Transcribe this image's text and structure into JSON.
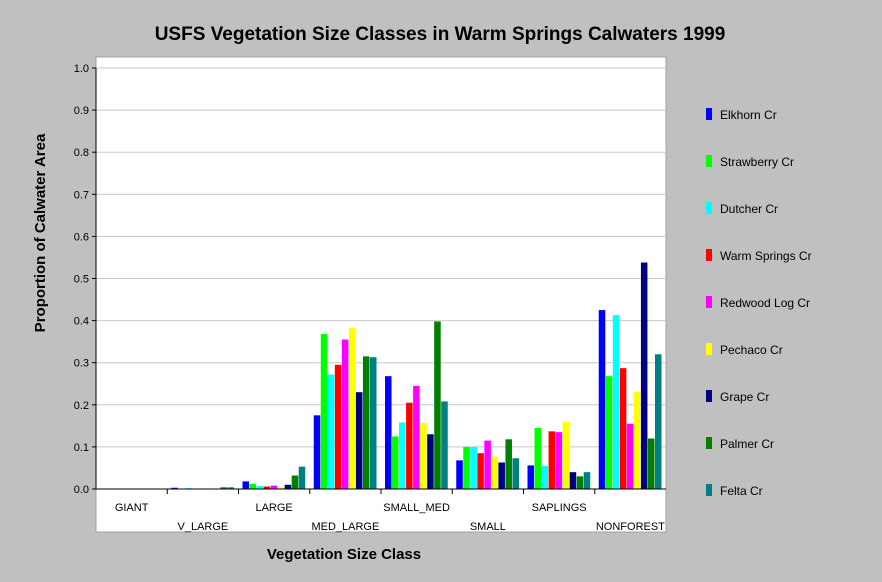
{
  "chart_data": {
    "type": "bar",
    "title": "USFS Vegetation Size Classes in Warm Springs Calwaters 1999",
    "xlabel": "Vegetation Size Class",
    "ylabel": "Proportion of Calwater Area",
    "ylim": [
      0,
      1.0
    ],
    "yticks": [
      "0.0",
      "0.1",
      "0.2",
      "0.3",
      "0.4",
      "0.5",
      "0.6",
      "0.7",
      "0.8",
      "0.9",
      "1.0"
    ],
    "grid": true,
    "legend_position": "right",
    "categories": [
      "GIANT",
      "V_LARGE",
      "LARGE",
      "MED_LARGE",
      "SMALL_MED",
      "SMALL",
      "SAPLINGS",
      "NONFOREST"
    ],
    "series": [
      {
        "name": "Elkhorn Cr",
        "color": "#0000ff",
        "values": [
          0.0,
          0.003,
          0.018,
          0.175,
          0.268,
          0.068,
          0.056,
          0.425
        ]
      },
      {
        "name": "Strawberry Cr",
        "color": "#00ff00",
        "values": [
          0.0,
          0.001,
          0.012,
          0.368,
          0.125,
          0.1,
          0.145,
          0.268
        ]
      },
      {
        "name": "Dutcher Cr",
        "color": "#00ffff",
        "values": [
          0.0,
          0.002,
          0.007,
          0.272,
          0.158,
          0.1,
          0.055,
          0.413
        ]
      },
      {
        "name": "Warm Springs Cr",
        "color": "#ff0000",
        "values": [
          0.0,
          0.0,
          0.006,
          0.295,
          0.205,
          0.085,
          0.137,
          0.287
        ]
      },
      {
        "name": "Redwood Log Cr",
        "color": "#ff00ff",
        "values": [
          0.0,
          0.0,
          0.008,
          0.355,
          0.245,
          0.115,
          0.135,
          0.155
        ]
      },
      {
        "name": "Pechaco Cr",
        "color": "#ffff00",
        "values": [
          0.0,
          0.0,
          0.003,
          0.382,
          0.157,
          0.077,
          0.16,
          0.23
        ]
      },
      {
        "name": "Grape Cr",
        "color": "#000080",
        "values": [
          0.0,
          0.0,
          0.01,
          0.23,
          0.13,
          0.063,
          0.04,
          0.538
        ]
      },
      {
        "name": "Palmer Cr",
        "color": "#008000",
        "values": [
          0.0,
          0.004,
          0.032,
          0.315,
          0.398,
          0.118,
          0.03,
          0.12
        ]
      },
      {
        "name": "Felta Cr",
        "color": "#008080",
        "values": [
          0.0,
          0.004,
          0.053,
          0.313,
          0.208,
          0.073,
          0.04,
          0.32
        ]
      }
    ]
  }
}
